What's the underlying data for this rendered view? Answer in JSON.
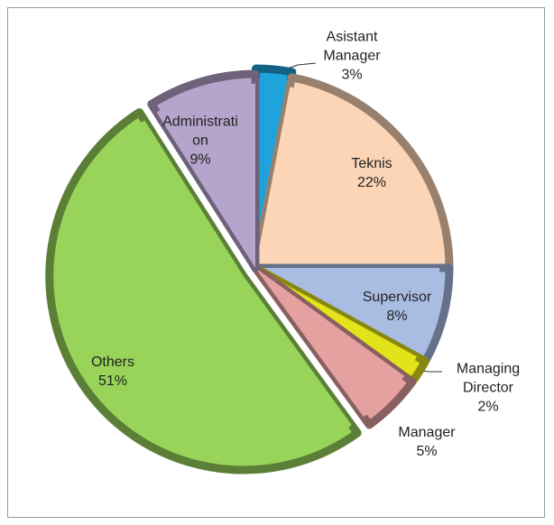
{
  "chart_data": {
    "type": "pie",
    "categories": [
      "Asistant Manager",
      "Teknis",
      "Supervisor",
      "Managing Director",
      "Manager",
      "Others",
      "Administration"
    ],
    "values": [
      3,
      22,
      8,
      2,
      5,
      51,
      9
    ],
    "value_labels": [
      "3%",
      "22%",
      "8%",
      "2%",
      "5%",
      "51%",
      "9%"
    ],
    "colors": [
      "#1fa3dc",
      "#fbd5b5",
      "#a9bde3",
      "#e3e31a",
      "#e5a0a0",
      "#98d45a",
      "#b5a4cb"
    ]
  }
}
